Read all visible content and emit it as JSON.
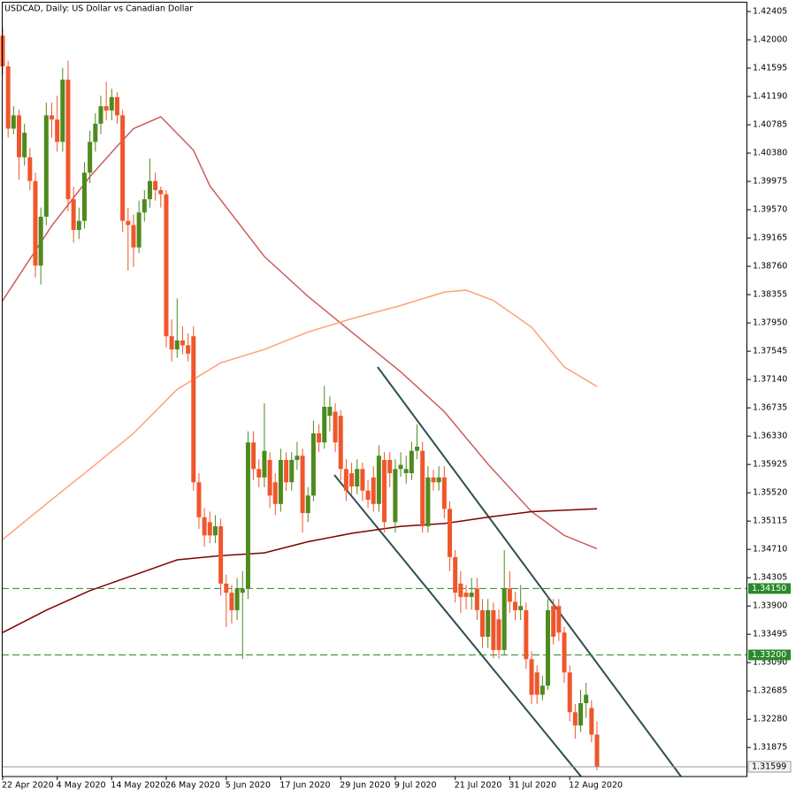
{
  "chart_data": {
    "type": "candlestick",
    "title": "USDCAD, Daily:  US Dollar vs Canadian Dollar",
    "up_color": "#4e8a1e",
    "down_color": "#f0562c",
    "categories": [
      "22 Apr 2020",
      null,
      null,
      null,
      null,
      null,
      null,
      null,
      null,
      null,
      "4 May 2020",
      null,
      null,
      null,
      null,
      null,
      null,
      null,
      null,
      null,
      "14 May 2020",
      null,
      null,
      null,
      null,
      null,
      null,
      null,
      null,
      null,
      "26 May 2020",
      null,
      null,
      null,
      null,
      null,
      null,
      null,
      null,
      null,
      null,
      "5 Jun 2020",
      null,
      null,
      null,
      null,
      null,
      null,
      null,
      null,
      null,
      "17 Jun 2020",
      null,
      null,
      null,
      null,
      null,
      null,
      null,
      null,
      null,
      null,
      "29 Jun 2020",
      null,
      null,
      null,
      null,
      null,
      null,
      null,
      null,
      null,
      "9 Jul 2020",
      null,
      null,
      null,
      null,
      null,
      null,
      null,
      null,
      null,
      null,
      "21 Jul 2020",
      null,
      null,
      null,
      null,
      null,
      null,
      null,
      null,
      null,
      "31 Jul 2020",
      null,
      null,
      null,
      null,
      null,
      null,
      null,
      null,
      null,
      null,
      "12 Aug 2020",
      null,
      null,
      null,
      null,
      null
    ],
    "open": [
      1.4206,
      1.4162,
      1.4073,
      1.4092,
      1.4032,
      1.4032,
      1.3998,
      1.3877,
      1.3947,
      1.4092,
      1.4086,
      1.4054,
      1.4143,
      1.3972,
      1.3928,
      1.3941,
      1.401,
      1.4054,
      1.408,
      1.4105,
      1.4099,
      1.4118,
      1.4092,
      1.3941,
      1.3935,
      1.3903,
      1.3953,
      1.3972,
      1.3998,
      1.3985,
      1.3979,
      1.3776,
      1.3757,
      1.377,
      1.3763,
      1.3776,
      1.3567,
      1.3517,
      1.351,
      1.3491,
      1.3504,
      1.3422,
      1.3409,
      1.3384,
      1.3409,
      1.3415,
      1.3624,
      1.3586,
      1.3574,
      1.3599,
      1.3567,
      1.3536,
      1.3599,
      1.3567,
      1.3599,
      1.3605,
      1.3523,
      1.3548,
      1.3637,
      1.3624,
      1.3662,
      1.3668,
      1.3662,
      1.3586,
      1.358,
      1.3561,
      1.3586,
      1.3555,
      1.3574,
      1.3536,
      1.3599,
      1.3599,
      1.351,
      1.3586,
      1.358,
      1.358,
      1.3612,
      1.3612,
      1.3504,
      1.3574,
      1.3567,
      1.3574,
      1.3529,
      1.346,
      1.3422,
      1.3409,
      1.3403,
      1.3415,
      1.3384,
      1.3346,
      1.3384,
      1.3371,
      1.3327,
      1.3415,
      1.3396,
      1.3384,
      1.3384,
      1.3314,
      1.3295,
      1.3263,
      1.3276,
      1.339,
      1.339,
      1.3352,
      1.3295,
      1.3238,
      1.3219,
      1.3251,
      1.3244,
      1.3206
    ],
    "high": [
      1.4218,
      1.417,
      1.4105,
      1.41,
      1.408,
      1.4045,
      1.401,
      1.396,
      1.411,
      1.411,
      1.412,
      1.416,
      1.417,
      1.399,
      1.396,
      1.4025,
      1.407,
      1.4095,
      1.412,
      1.414,
      1.413,
      1.4125,
      1.41,
      1.396,
      1.395,
      1.397,
      1.3985,
      1.403,
      1.401,
      1.399,
      1.3985,
      1.38,
      1.383,
      1.379,
      1.378,
      1.379,
      1.358,
      1.353,
      1.3525,
      1.352,
      1.3515,
      1.3435,
      1.342,
      1.343,
      1.344,
      1.364,
      1.364,
      1.36,
      1.368,
      1.361,
      1.358,
      1.3615,
      1.361,
      1.361,
      1.3625,
      1.3615,
      1.356,
      1.3655,
      1.365,
      1.3705,
      1.369,
      1.368,
      1.367,
      1.36,
      1.3595,
      1.36,
      1.3595,
      1.357,
      1.359,
      1.362,
      1.361,
      1.361,
      1.36,
      1.361,
      1.3605,
      1.3625,
      1.365,
      1.3625,
      1.359,
      1.3585,
      1.359,
      1.359,
      1.354,
      1.347,
      1.344,
      1.342,
      1.343,
      1.343,
      1.34,
      1.34,
      1.3395,
      1.3385,
      1.347,
      1.344,
      1.341,
      1.342,
      1.3395,
      1.3325,
      1.3305,
      1.329,
      1.34,
      1.34,
      1.34,
      1.336,
      1.3305,
      1.325,
      1.327,
      1.328,
      1.3255,
      1.3225
    ],
    "low": [
      1.415,
      1.406,
      1.4065,
      1.4,
      1.402,
      1.3985,
      1.386,
      1.385,
      1.3935,
      1.406,
      1.404,
      1.404,
      1.3955,
      1.391,
      1.3915,
      1.393,
      1.3995,
      1.404,
      1.4065,
      1.4085,
      1.4085,
      1.408,
      1.3925,
      1.387,
      1.3875,
      1.3895,
      1.394,
      1.396,
      1.397,
      1.396,
      1.376,
      1.374,
      1.3745,
      1.375,
      1.374,
      1.3555,
      1.35,
      1.3475,
      1.348,
      1.348,
      1.3405,
      1.336,
      1.3365,
      1.337,
      1.3314,
      1.34,
      1.357,
      1.356,
      1.356,
      1.353,
      1.352,
      1.3525,
      1.3555,
      1.3555,
      1.3585,
      1.3495,
      1.351,
      1.354,
      1.361,
      1.3615,
      1.364,
      1.361,
      1.357,
      1.354,
      1.355,
      1.355,
      1.354,
      1.353,
      1.3525,
      1.3525,
      1.3495,
      1.356,
      1.3495,
      1.3575,
      1.3565,
      1.357,
      1.36,
      1.3495,
      1.3495,
      1.3555,
      1.3555,
      1.3515,
      1.344,
      1.3395,
      1.338,
      1.3385,
      1.3385,
      1.337,
      1.333,
      1.333,
      1.3315,
      1.3315,
      1.332,
      1.338,
      1.337,
      1.337,
      1.33,
      1.325,
      1.325,
      1.3255,
      1.327,
      1.3335,
      1.334,
      1.328,
      1.3225,
      1.32,
      1.321,
      1.323,
      1.3195,
      1.3155
    ],
    "close": [
      1.4162,
      1.4073,
      1.4092,
      1.4032,
      1.4067,
      1.3998,
      1.3877,
      1.3947,
      1.4092,
      1.4086,
      1.4054,
      1.4143,
      1.3972,
      1.3928,
      1.3941,
      1.401,
      1.4054,
      1.408,
      1.4105,
      1.4099,
      1.4118,
      1.4092,
      1.3941,
      1.3935,
      1.3903,
      1.3953,
      1.3972,
      1.3998,
      1.3985,
      1.3979,
      1.3776,
      1.3757,
      1.377,
      1.3763,
      1.3751,
      1.3567,
      1.3517,
      1.3491,
      1.3491,
      1.3504,
      1.3422,
      1.3409,
      1.3384,
      1.3415,
      1.3415,
      1.3624,
      1.3586,
      1.3574,
      1.3612,
      1.3548,
      1.3536,
      1.3599,
      1.3567,
      1.3599,
      1.3605,
      1.3523,
      1.3548,
      1.3637,
      1.3624,
      1.3675,
      1.3675,
      1.3624,
      1.3586,
      1.3555,
      1.3561,
      1.3586,
      1.3555,
      1.3542,
      1.3536,
      1.3605,
      1.351,
      1.358,
      1.3586,
      1.3592,
      1.3586,
      1.3612,
      1.3618,
      1.3504,
      1.3574,
      1.3567,
      1.3574,
      1.3529,
      1.346,
      1.3409,
      1.3403,
      1.3403,
      1.3409,
      1.3384,
      1.3346,
      1.3384,
      1.3327,
      1.3327,
      1.3415,
      1.3396,
      1.3384,
      1.339,
      1.3314,
      1.3263,
      1.3263,
      1.3276,
      1.3384,
      1.3346,
      1.3352,
      1.3295,
      1.3238,
      1.3219,
      1.3251,
      1.3263,
      1.3206,
      1.31599
    ],
    "moving_averages": [
      {
        "color": "#cd5c5c",
        "x": [
          0,
          9,
          16,
          21,
          24,
          29,
          35,
          38,
          48,
          56,
          64,
          73,
          81,
          89,
          97,
          103,
          109
        ],
        "values": [
          1.3827,
          1.3934,
          1.4004,
          1.4048,
          1.4073,
          1.409,
          1.4042,
          1.3991,
          1.389,
          1.3833,
          1.3782,
          1.3725,
          1.3668,
          1.3593,
          1.3525,
          1.3491,
          1.3472
        ]
      },
      {
        "color": "#ffa07a",
        "x": [
          0,
          8,
          16,
          24,
          32,
          40,
          48,
          56,
          64,
          73,
          81,
          85,
          90,
          97,
          103,
          109
        ],
        "values": [
          1.3485,
          1.3536,
          1.3586,
          1.3637,
          1.37,
          1.3738,
          1.3757,
          1.3782,
          1.3801,
          1.382,
          1.3839,
          1.3842,
          1.3827,
          1.3789,
          1.3732,
          1.3704
        ]
      },
      {
        "color": "#800000",
        "x": [
          0,
          8,
          16,
          24,
          32,
          40,
          48,
          56,
          64,
          73,
          81,
          89,
          97,
          109
        ],
        "values": [
          1.3352,
          1.3384,
          1.3412,
          1.3434,
          1.3456,
          1.3462,
          1.3466,
          1.3482,
          1.3494,
          1.3504,
          1.3508,
          1.3517,
          1.3525,
          1.3529
        ]
      }
    ],
    "levels": [
      {
        "value": 1.3415,
        "label": "1.34150"
      },
      {
        "value": 1.332,
        "label": "1.33200"
      }
    ],
    "level_color": "#2a8a2a",
    "last_price": 1.31599,
    "ylim": [
      1.3146,
      1.4257
    ],
    "yticks": [
      1.42405,
      {
        "value": 1.42,
        "label": "1.42000"
      },
      1.41595,
      {
        "value": 1.4119,
        "label": "1.41190"
      },
      1.40785,
      {
        "value": 1.4038,
        "label": "1.40380"
      },
      1.39975,
      {
        "value": 1.3957,
        "label": "1.39570"
      },
      1.39165,
      {
        "value": 1.3876,
        "label": "1.38760"
      },
      1.38355,
      {
        "value": 1.3795,
        "label": "1.37950"
      },
      1.37545,
      {
        "value": 1.3714,
        "label": "1.37140"
      },
      1.36735,
      {
        "value": 1.3633,
        "label": "1.36330"
      },
      1.35925,
      {
        "value": 1.3552,
        "label": "1.35520"
      },
      1.35115,
      {
        "value": 1.3471,
        "label": "1.34710"
      },
      1.34305,
      {
        "value": 1.339,
        "label": "1.33900"
      },
      1.33495,
      {
        "value": 1.3309,
        "label": "1.33090"
      },
      1.32685,
      {
        "value": 1.3228,
        "label": "1.32280"
      },
      1.31875
    ]
  }
}
